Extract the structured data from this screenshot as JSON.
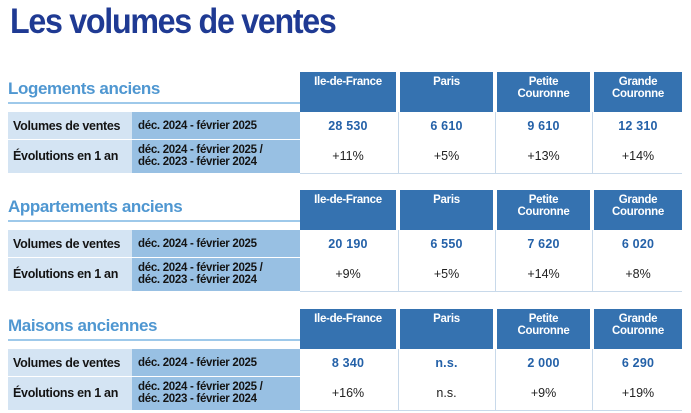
{
  "title": "Les volumes de ventes",
  "columns": [
    "Ile-de-France",
    "Paris",
    "Petite\nCouronne",
    "Grande\nCouronne"
  ],
  "row_labels": {
    "volumes": "Volumes de ventes",
    "evolutions": "Évolutions en 1 an"
  },
  "periods": {
    "volumes": "déc. 2024 - février 2025",
    "evolutions_line1": "déc. 2024 - février 2025 /",
    "evolutions_line2": "déc. 2023 - février 2024"
  },
  "sections": [
    {
      "title": "Logements anciens",
      "volumes": [
        "28 530",
        "6 610",
        "9 610",
        "12 310"
      ],
      "evolutions": [
        "+11%",
        "+5%",
        "+13%",
        "+14%"
      ]
    },
    {
      "title": "Appartements anciens",
      "volumes": [
        "20 190",
        "6 550",
        "7 620",
        "6 020"
      ],
      "evolutions": [
        "+9%",
        "+5%",
        "+14%",
        "+8%"
      ]
    },
    {
      "title": "Maisons anciennes",
      "volumes": [
        "8 340",
        "n.s.",
        "2 000",
        "6 290"
      ],
      "evolutions": [
        "+16%",
        "n.s.",
        "+9%",
        "+19%"
      ]
    }
  ],
  "colors": {
    "title": "#1f3a93",
    "section_title": "#4f97d1",
    "header_bg": "#3572b0",
    "label_bg": "#d4e4f3",
    "period_bg": "#98c0e3",
    "volume_text": "#2461a8"
  }
}
